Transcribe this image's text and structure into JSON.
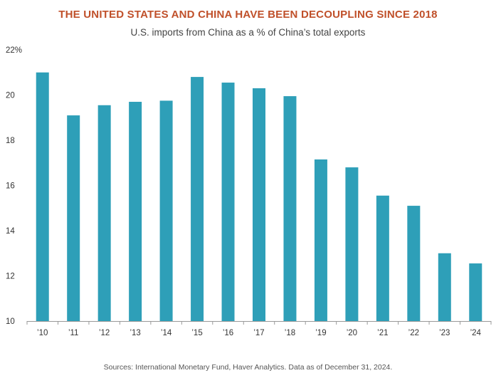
{
  "chart_data": {
    "type": "bar",
    "title": "THE UNITED STATES AND CHINA HAVE BEEN DECOUPLING SINCE 2018",
    "subtitle": "U.S. imports from China as a % of China’s total exports",
    "xlabel": "",
    "ylabel": "",
    "categories": [
      "’10",
      "’11",
      "’12",
      "’13",
      "’14",
      "’15",
      "’16",
      "’17",
      "’18",
      "’19",
      "’20",
      "’21",
      "’22",
      "’23",
      "’24"
    ],
    "values": [
      21.0,
      19.1,
      19.55,
      19.7,
      19.75,
      20.8,
      20.55,
      20.3,
      19.95,
      17.15,
      16.8,
      15.55,
      15.1,
      13.0,
      12.55
    ],
    "ylim": [
      10,
      22
    ],
    "yticks": [
      10,
      12,
      14,
      16,
      18,
      20,
      22
    ],
    "ytick_labels": [
      "10",
      "12",
      "14",
      "16",
      "18",
      "20",
      "22%"
    ],
    "bar_color": "#2e9fb8",
    "grid": false,
    "source": "Sources: International Monetary Fund, Haver Analytics. Data as of December 31, 2024."
  }
}
